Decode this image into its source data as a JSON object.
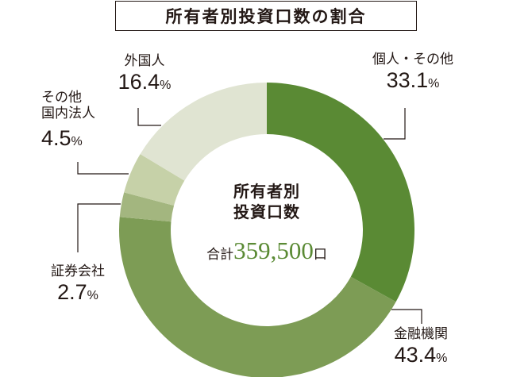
{
  "title": "所有者別投資口数の割合",
  "center": {
    "title_line1": "所有者別",
    "title_line2": "投資口数",
    "total_label": "合計",
    "total_value": "359,500",
    "total_unit": "口"
  },
  "labels": [
    {
      "name": "個人・その他",
      "value": "33.1",
      "unit": "%"
    },
    {
      "name": "金融機関",
      "value": "43.4",
      "unit": "%"
    },
    {
      "name": "証券会社",
      "value": "2.7",
      "unit": "%"
    },
    {
      "name_line1": "その他",
      "name_line2": "国内法人",
      "value": "4.5",
      "unit": "%"
    },
    {
      "name": "外国人",
      "value": "16.4",
      "unit": "%"
    }
  ],
  "chart_data": {
    "type": "pie",
    "subtype": "donut",
    "title": "所有者別投資口数の割合",
    "center_text": "所有者別投資口数 合計359,500口",
    "total": 359500,
    "unit": "口",
    "categories": [
      "個人・その他",
      "金融機関",
      "証券会社",
      "その他国内法人",
      "外国人"
    ],
    "values": [
      33.1,
      43.4,
      2.7,
      4.5,
      16.4
    ],
    "value_unit": "%",
    "colors": [
      "#5a8a34",
      "#7d9c55",
      "#a3b67f",
      "#c6d1a8",
      "#e0e4d2"
    ],
    "start_angle": "12 o'clock",
    "direction": "clockwise",
    "legend": "leader-line labels"
  }
}
